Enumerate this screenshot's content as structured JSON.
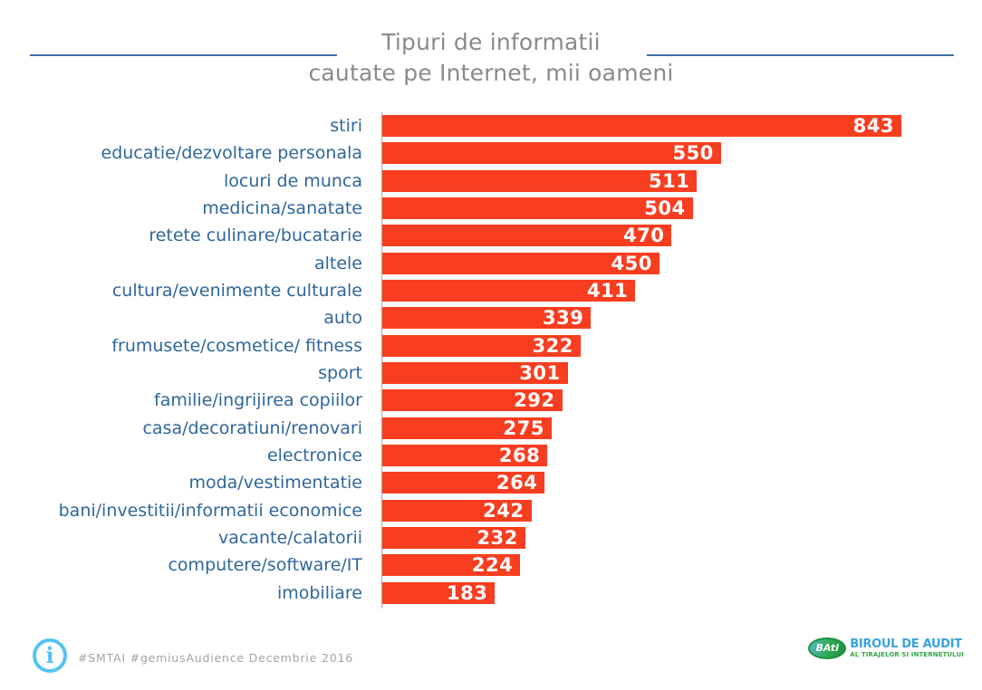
{
  "title": {
    "line1": "Tipuri de informatii",
    "line2": "cautate pe Internet, mii oameni"
  },
  "chart_data": {
    "type": "bar",
    "orientation": "horizontal",
    "title": "Tipuri de informatii cautate pe Internet, mii oameni",
    "xlabel": "",
    "ylabel": "",
    "categories": [
      "stiri",
      "educatie/dezvoltare personala",
      "locuri de munca",
      "medicina/sanatate",
      "retete culinare/bucatarie",
      "altele",
      "cultura/evenimente culturale",
      "auto",
      "frumusete/cosmetice/ fitness",
      "sport",
      "familie/ingrijirea copiilor",
      "casa/decoratiuni/renovari",
      "electronice",
      "moda/vestimentatie",
      "bani/investitii/informatii economice",
      "vacante/calatorii",
      "computere/software/IT",
      "imobiliare"
    ],
    "values": [
      843,
      550,
      511,
      504,
      470,
      450,
      411,
      339,
      322,
      301,
      292,
      275,
      268,
      264,
      242,
      232,
      224,
      183
    ],
    "xlim": [
      0,
      974
    ],
    "grid": false,
    "legend": "none",
    "data_labels": "inside-end",
    "bar_color": "#f93d20",
    "value_label_color": "#ffffff",
    "category_label_color": "#2f669c"
  },
  "footer": {
    "hashtags": "#SMTAI #gemiusAudience Decembrie 2016"
  },
  "logo": {
    "badge": "BAti",
    "line1": "BIROUL DE AUDIT",
    "line2": "AL TIRAJELOR SI INTERNETULUI"
  },
  "colors": {
    "bar": "#f93d20",
    "category_label": "#2f669c",
    "title_text": "#8a8a8a",
    "title_rule": "#3e6fa5",
    "footer_text": "#a3a3a3",
    "info_icon": "#55c3f2",
    "logo_blue": "#3aa3db",
    "logo_green": "#36a746"
  }
}
